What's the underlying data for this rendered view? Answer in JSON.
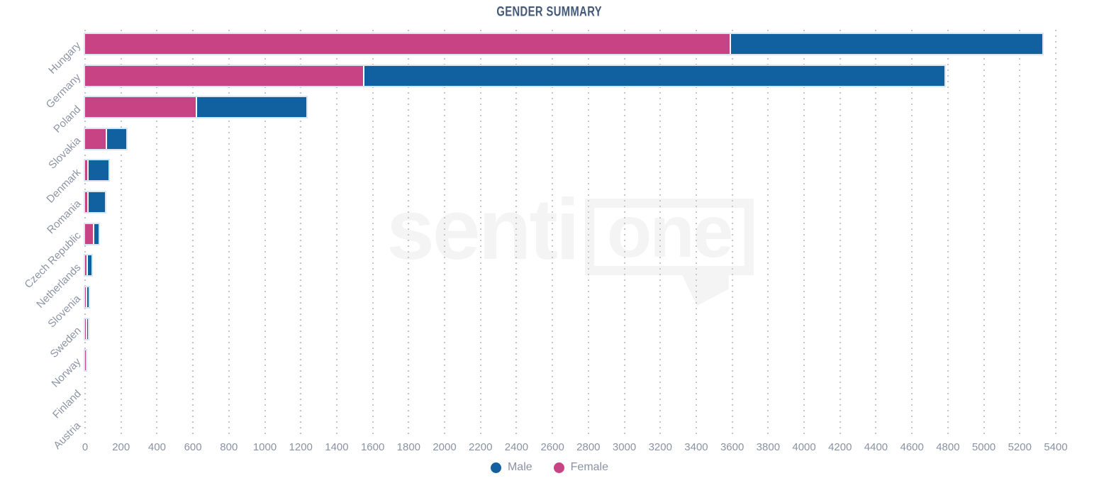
{
  "watermark": {
    "senti": "senti",
    "one": "one"
  },
  "colors": {
    "male": "#11609f",
    "female": "#c84384",
    "title_text": "#44597a",
    "axis_text": "#8a93a4",
    "grid_dots": "#c6c6c6",
    "bar_halo": "#d7e6f5",
    "watermark": "#f4f4f4"
  },
  "chart_data": {
    "type": "bar",
    "orientation": "horizontal",
    "stacked": true,
    "title": "GENDER SUMMARY",
    "xlabel": "",
    "ylabel": "",
    "categories": [
      "Hungary",
      "Germany",
      "Poland",
      "Slovakia",
      "Denmark",
      "Romania",
      "Czech Republic",
      "Netherlands",
      "Slovenia",
      "Sweden",
      "Norway",
      "Finland",
      "Austria"
    ],
    "series": [
      {
        "name": "Female",
        "color": "#c84384",
        "values": [
          3590,
          1550,
          620,
          120,
          15,
          15,
          46,
          11,
          6,
          2,
          5,
          0,
          0
        ]
      },
      {
        "name": "Male",
        "color": "#11609f",
        "values": [
          1735,
          3230,
          610,
          110,
          115,
          95,
          29,
          26,
          12,
          12,
          0,
          0,
          0
        ]
      }
    ],
    "xlim": [
      0,
      5400
    ],
    "x_ticks": [
      0,
      200,
      400,
      600,
      800,
      1000,
      1200,
      1400,
      1600,
      1800,
      2000,
      2200,
      2400,
      2600,
      2800,
      3000,
      3200,
      3400,
      3600,
      3800,
      4000,
      4200,
      4400,
      4600,
      4800,
      5000,
      5200,
      5400
    ],
    "grid": "dotted-vertical",
    "legend_position": "bottom",
    "legend": [
      {
        "label": "Male",
        "color": "#11609f"
      },
      {
        "label": "Female",
        "color": "#c84384"
      }
    ]
  }
}
